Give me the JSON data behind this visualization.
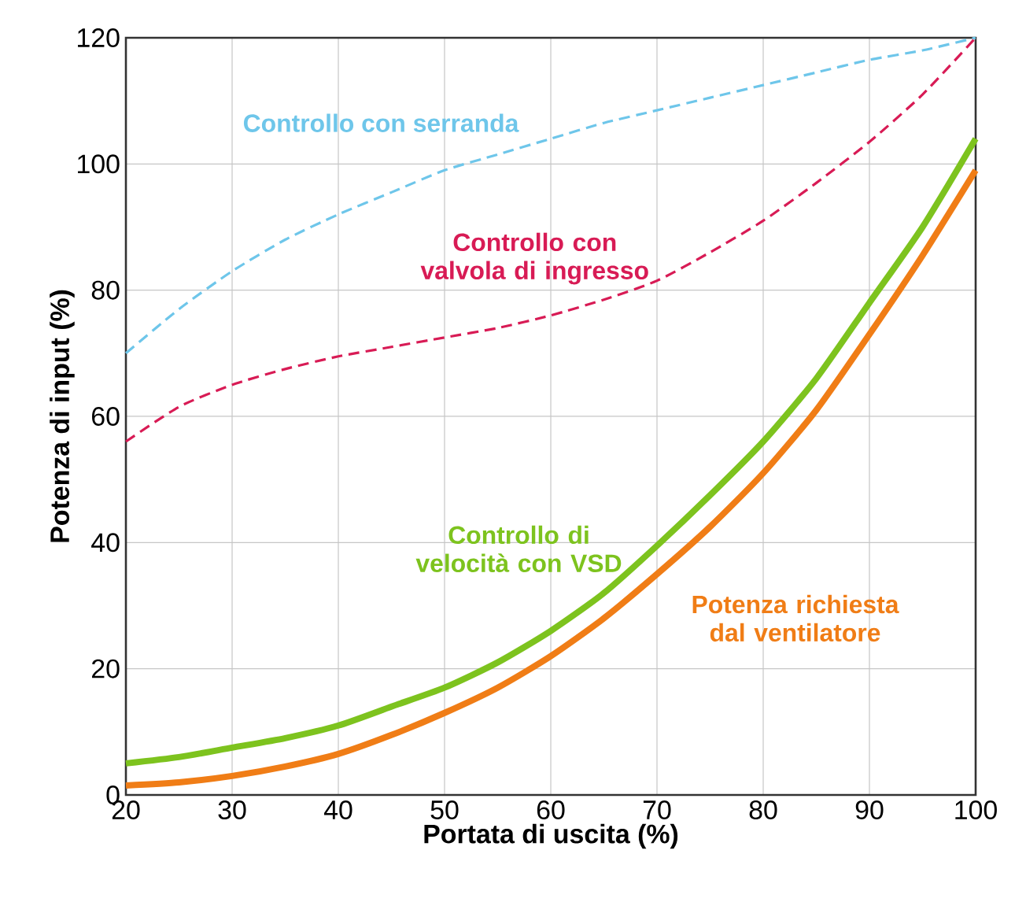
{
  "chart_data": {
    "type": "line",
    "xlabel": "Portata di uscita (%)",
    "ylabel": "Potenza di input (%)",
    "x": [
      20,
      25,
      30,
      35,
      40,
      45,
      50,
      55,
      60,
      65,
      70,
      75,
      80,
      85,
      90,
      95,
      100
    ],
    "series": [
      {
        "name": "Controllo con serranda",
        "color": "#6ec6ea",
        "line_style": "dashed",
        "values": [
          70,
          77,
          83,
          88,
          92,
          95.5,
          99,
          101.5,
          104,
          106.5,
          108.5,
          110.5,
          112.5,
          114.5,
          116.5,
          118,
          120
        ]
      },
      {
        "name": "Controllo con valvola di ingresso",
        "color": "#d81b55",
        "line_style": "dashed",
        "values": [
          56,
          61.5,
          65,
          67.5,
          69.5,
          71,
          72.5,
          74,
          76,
          78.5,
          81.5,
          86,
          91,
          97,
          103.5,
          111,
          120
        ]
      },
      {
        "name": "Controllo di velocità con VSD",
        "color": "#7dc31e",
        "line_style": "solid",
        "values": [
          5,
          6,
          7.5,
          9,
          11,
          14,
          17,
          21,
          26,
          32,
          39.5,
          47.5,
          56,
          66,
          78,
          90,
          104
        ]
      },
      {
        "name": "Potenza richiesta dal ventilatore",
        "color": "#f07d16",
        "line_style": "solid",
        "values": [
          1.5,
          2,
          3,
          4.5,
          6.5,
          9.5,
          13,
          17,
          22,
          28,
          35,
          42.5,
          51,
          61,
          73,
          85.5,
          99
        ]
      }
    ],
    "xlim": [
      20,
      100
    ],
    "ylim": [
      0,
      120
    ],
    "xticks": [
      20,
      30,
      40,
      50,
      60,
      70,
      80,
      90,
      100
    ],
    "yticks": [
      0,
      20,
      40,
      60,
      80,
      100,
      120
    ],
    "grid": true,
    "marker": "none"
  }
}
